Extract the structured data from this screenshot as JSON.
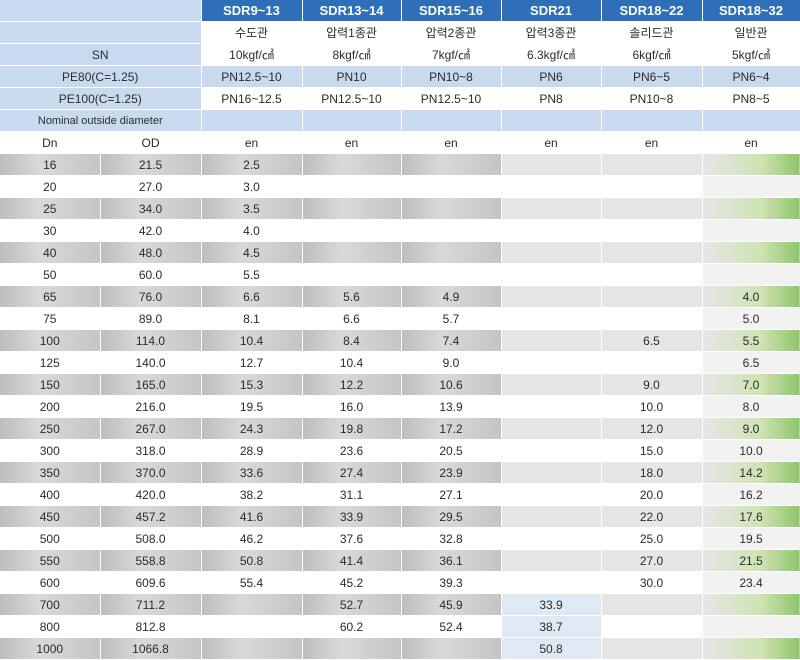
{
  "header": {
    "sdr_columns": [
      {
        "sdr": "SDR9~13",
        "type": "수도관",
        "sn": "10kgf/㎠",
        "pe80": "PN12.5~10",
        "pe100": "PN16~12.5"
      },
      {
        "sdr": "SDR13~14",
        "type": "압력1종관",
        "sn": "8kgf/㎠",
        "pe80": "PN10",
        "pe100": "PN12.5~10"
      },
      {
        "sdr": "SDR15~16",
        "type": "압력2종관",
        "sn": "7kgf/㎠",
        "pe80": "PN10~8",
        "pe100": "PN12.5~10"
      },
      {
        "sdr": "SDR21",
        "type": "압력3종관",
        "sn": "6.3kgf/㎠",
        "pe80": "PN6",
        "pe100": "PN8"
      },
      {
        "sdr": "SDR18~22",
        "type": "솔리드관",
        "sn": "6kgf/㎠",
        "pe80": "PN6~5",
        "pe100": "PN10~8"
      },
      {
        "sdr": "SDR18~32",
        "type": "일반관",
        "sn": "5kgf/㎠",
        "pe80": "PN6~4",
        "pe100": "PN8~5"
      }
    ],
    "sn_label": "SN",
    "pe80_label": "PE80(C=1.25)",
    "pe100_label": "PE100(C=1.25)",
    "nominal_label": "Nominal outside diameter",
    "dn_label": "Dn",
    "od_label": "OD",
    "en_label": "en"
  },
  "rows": [
    {
      "dn": "16",
      "od": "21.5",
      "v": [
        "2.5",
        "",
        "",
        "",
        "",
        ""
      ]
    },
    {
      "dn": "20",
      "od": "27.0",
      "v": [
        "3.0",
        "",
        "",
        "",
        "",
        ""
      ]
    },
    {
      "dn": "25",
      "od": "34.0",
      "v": [
        "3.5",
        "",
        "",
        "",
        "",
        ""
      ]
    },
    {
      "dn": "30",
      "od": "42.0",
      "v": [
        "4.0",
        "",
        "",
        "",
        "",
        ""
      ]
    },
    {
      "dn": "40",
      "od": "48.0",
      "v": [
        "4.5",
        "",
        "",
        "",
        "",
        ""
      ]
    },
    {
      "dn": "50",
      "od": "60.0",
      "v": [
        "5.5",
        "",
        "",
        "",
        "",
        ""
      ]
    },
    {
      "dn": "65",
      "od": "76.0",
      "v": [
        "6.6",
        "5.6",
        "4.9",
        "",
        "",
        "4.0"
      ]
    },
    {
      "dn": "75",
      "od": "89.0",
      "v": [
        "8.1",
        "6.6",
        "5.7",
        "",
        "",
        "5.0"
      ]
    },
    {
      "dn": "100",
      "od": "114.0",
      "v": [
        "10.4",
        "8.4",
        "7.4",
        "",
        "6.5",
        "5.5"
      ]
    },
    {
      "dn": "125",
      "od": "140.0",
      "v": [
        "12.7",
        "10.4",
        "9.0",
        "",
        "",
        "6.5"
      ]
    },
    {
      "dn": "150",
      "od": "165.0",
      "v": [
        "15.3",
        "12.2",
        "10.6",
        "",
        "9.0",
        "7.0"
      ]
    },
    {
      "dn": "200",
      "od": "216.0",
      "v": [
        "19.5",
        "16.0",
        "13.9",
        "",
        "10.0",
        "8.0"
      ]
    },
    {
      "dn": "250",
      "od": "267.0",
      "v": [
        "24.3",
        "19.8",
        "17.2",
        "",
        "12.0",
        "9.0"
      ]
    },
    {
      "dn": "300",
      "od": "318.0",
      "v": [
        "28.9",
        "23.6",
        "20.5",
        "",
        "15.0",
        "10.0"
      ]
    },
    {
      "dn": "350",
      "od": "370.0",
      "v": [
        "33.6",
        "27.4",
        "23.9",
        "",
        "18.0",
        "14.2"
      ]
    },
    {
      "dn": "400",
      "od": "420.0",
      "v": [
        "38.2",
        "31.1",
        "27.1",
        "",
        "20.0",
        "16.2"
      ]
    },
    {
      "dn": "450",
      "od": "457.2",
      "v": [
        "41.6",
        "33.9",
        "29.5",
        "",
        "22.0",
        "17.6"
      ]
    },
    {
      "dn": "500",
      "od": "508.0",
      "v": [
        "46.2",
        "37.6",
        "32.8",
        "",
        "25.0",
        "19.5"
      ]
    },
    {
      "dn": "550",
      "od": "558.8",
      "v": [
        "50.8",
        "41.4",
        "36.1",
        "",
        "27.0",
        "21.5"
      ]
    },
    {
      "dn": "600",
      "od": "609.6",
      "v": [
        "55.4",
        "45.2",
        "39.3",
        "",
        "30.0",
        "23.4"
      ]
    },
    {
      "dn": "700",
      "od": "711.2",
      "v": [
        "",
        "52.7",
        "45.9",
        "33.9",
        "",
        ""
      ]
    },
    {
      "dn": "800",
      "od": "812.8",
      "v": [
        "",
        "60.2",
        "52.4",
        "38.7",
        "",
        ""
      ]
    },
    {
      "dn": "1000",
      "od": "1066.8",
      "v": [
        "",
        "",
        "",
        "50.8",
        "",
        ""
      ]
    }
  ]
}
